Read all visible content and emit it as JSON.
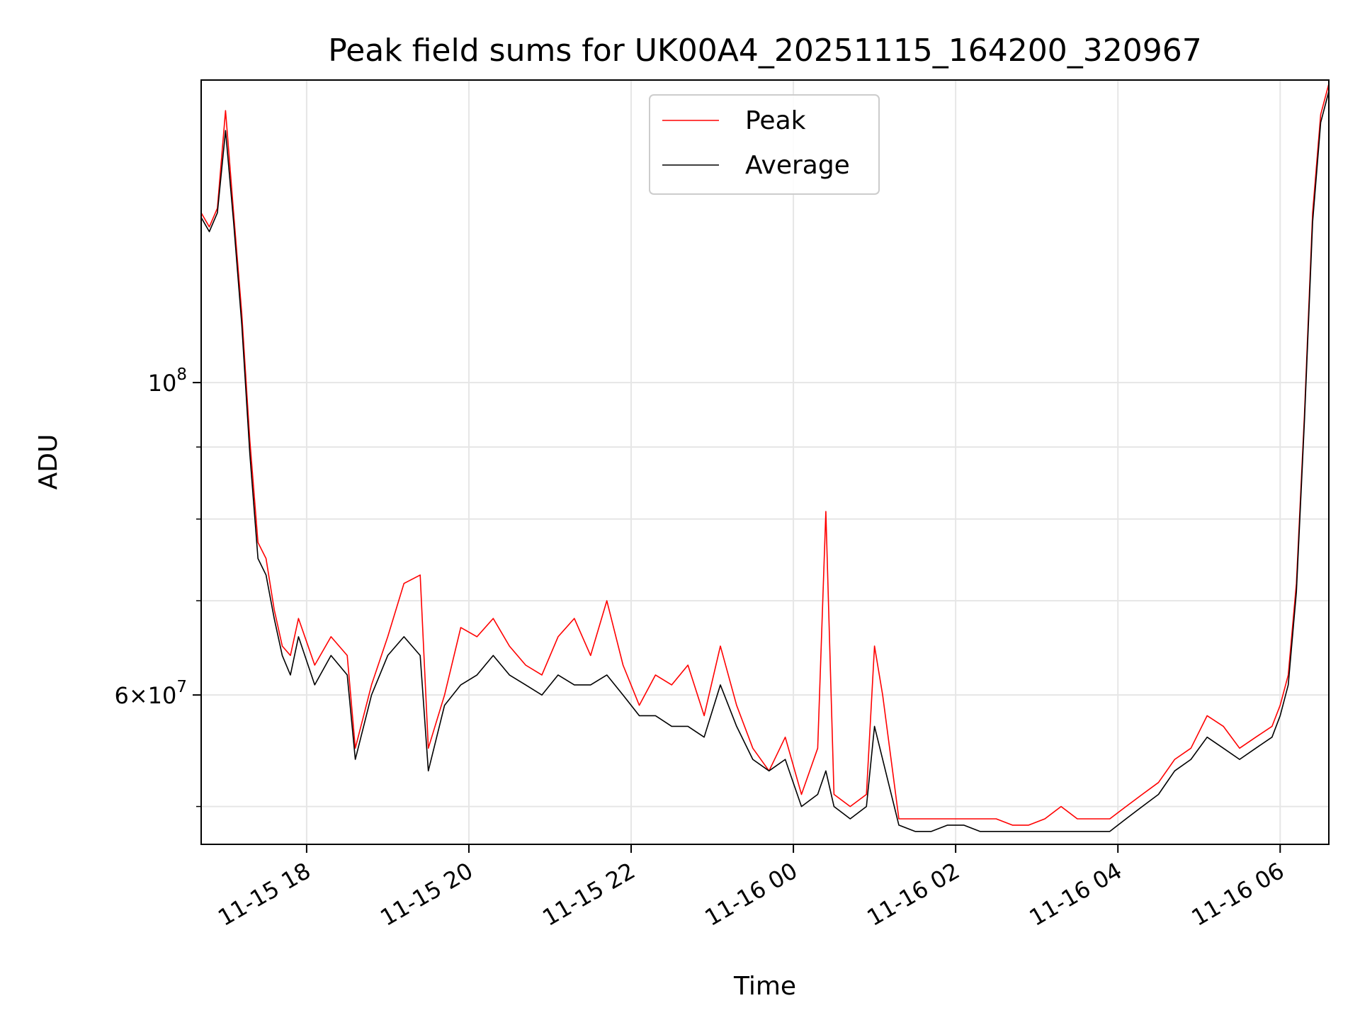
{
  "chart_data": {
    "type": "line",
    "title": "Peak field sums for UK00A4_20251115_164200_320967",
    "xlabel": "Time",
    "ylabel": "ADU",
    "yscale": "log",
    "grid": true,
    "legend_placement": "upper-center",
    "xlim": [
      "2025-11-15 16:42",
      "2025-11-16 06:36"
    ],
    "ylim": [
      47000000,
      164000000
    ],
    "x_ticks": [
      {
        "value": "2025-11-15 18:00",
        "label": "11-15 18"
      },
      {
        "value": "2025-11-15 20:00",
        "label": "11-15 20"
      },
      {
        "value": "2025-11-15 22:00",
        "label": "11-15 22"
      },
      {
        "value": "2025-11-16 00:00",
        "label": "11-16 00"
      },
      {
        "value": "2025-11-16 02:00",
        "label": "11-16 02"
      },
      {
        "value": "2025-11-16 04:00",
        "label": "11-16 04"
      },
      {
        "value": "2025-11-16 06:00",
        "label": "11-16 06"
      }
    ],
    "y_major_ticks": [
      {
        "value": 100000000,
        "base": "10",
        "exp": "8"
      },
      {
        "value": 60000000,
        "mant": "6",
        "base": "10",
        "exp": "7"
      }
    ],
    "y_minor_ticks": [
      50000000,
      70000000,
      80000000,
      90000000
    ],
    "x": [
      "2025-11-15 16:42",
      "2025-11-15 16:48",
      "2025-11-15 16:54",
      "2025-11-15 17:00",
      "2025-11-15 17:06",
      "2025-11-15 17:12",
      "2025-11-15 17:18",
      "2025-11-15 17:24",
      "2025-11-15 17:30",
      "2025-11-15 17:36",
      "2025-11-15 17:42",
      "2025-11-15 17:48",
      "2025-11-15 17:54",
      "2025-11-15 18:06",
      "2025-11-15 18:18",
      "2025-11-15 18:30",
      "2025-11-15 18:36",
      "2025-11-15 18:48",
      "2025-11-15 19:00",
      "2025-11-15 19:12",
      "2025-11-15 19:24",
      "2025-11-15 19:30",
      "2025-11-15 19:42",
      "2025-11-15 19:54",
      "2025-11-15 20:06",
      "2025-11-15 20:18",
      "2025-11-15 20:30",
      "2025-11-15 20:42",
      "2025-11-15 20:54",
      "2025-11-15 21:06",
      "2025-11-15 21:18",
      "2025-11-15 21:30",
      "2025-11-15 21:42",
      "2025-11-15 21:54",
      "2025-11-15 22:06",
      "2025-11-15 22:18",
      "2025-11-15 22:30",
      "2025-11-15 22:42",
      "2025-11-15 22:54",
      "2025-11-15 23:06",
      "2025-11-15 23:18",
      "2025-11-15 23:30",
      "2025-11-15 23:42",
      "2025-11-15 23:54",
      "2025-11-16 00:06",
      "2025-11-16 00:18",
      "2025-11-16 00:24",
      "2025-11-16 00:30",
      "2025-11-16 00:42",
      "2025-11-16 00:54",
      "2025-11-16 01:00",
      "2025-11-16 01:06",
      "2025-11-16 01:18",
      "2025-11-16 01:30",
      "2025-11-16 01:42",
      "2025-11-16 01:54",
      "2025-11-16 02:06",
      "2025-11-16 02:18",
      "2025-11-16 02:30",
      "2025-11-16 02:42",
      "2025-11-16 02:54",
      "2025-11-16 03:06",
      "2025-11-16 03:18",
      "2025-11-16 03:30",
      "2025-11-16 03:42",
      "2025-11-16 03:54",
      "2025-11-16 04:06",
      "2025-11-16 04:18",
      "2025-11-16 04:30",
      "2025-11-16 04:42",
      "2025-11-16 04:54",
      "2025-11-16 05:06",
      "2025-11-16 05:18",
      "2025-11-16 05:30",
      "2025-11-16 05:42",
      "2025-11-16 05:54",
      "2025-11-16 06:00",
      "2025-11-16 06:06",
      "2025-11-16 06:12",
      "2025-11-16 06:18",
      "2025-11-16 06:24",
      "2025-11-16 06:30",
      "2025-11-16 06:36"
    ],
    "series": [
      {
        "name": "Peak",
        "color": "#ff0000",
        "values": [
          132000000,
          129000000,
          133000000,
          156000000,
          132000000,
          112000000,
          91000000,
          77000000,
          75000000,
          69000000,
          65000000,
          64000000,
          68000000,
          63000000,
          66000000,
          64000000,
          55000000,
          61000000,
          66000000,
          72000000,
          73000000,
          55000000,
          60000000,
          67000000,
          66000000,
          68000000,
          65000000,
          63000000,
          62000000,
          66000000,
          68000000,
          64000000,
          70000000,
          63000000,
          59000000,
          62000000,
          61000000,
          63000000,
          58000000,
          65000000,
          59000000,
          55000000,
          53000000,
          56000000,
          51000000,
          55000000,
          81000000,
          51000000,
          50000000,
          51000000,
          65000000,
          60000000,
          49000000,
          49000000,
          49000000,
          49000000,
          49000000,
          49000000,
          49000000,
          48500000,
          48500000,
          49000000,
          50000000,
          49000000,
          49000000,
          49000000,
          50000000,
          51000000,
          52000000,
          54000000,
          55000000,
          58000000,
          57000000,
          55000000,
          56000000,
          57000000,
          59000000,
          62000000,
          72000000,
          95000000,
          132000000,
          155000000,
          163000000
        ]
      },
      {
        "name": "Average",
        "color": "#000000",
        "values": [
          131000000,
          128000000,
          132000000,
          151000000,
          130000000,
          110000000,
          89000000,
          75000000,
          73000000,
          68000000,
          64000000,
          62000000,
          66000000,
          61000000,
          64000000,
          62000000,
          54000000,
          60000000,
          64000000,
          66000000,
          64000000,
          53000000,
          59000000,
          61000000,
          62000000,
          64000000,
          62000000,
          61000000,
          60000000,
          62000000,
          61000000,
          61000000,
          62000000,
          60000000,
          58000000,
          58000000,
          57000000,
          57000000,
          56000000,
          61000000,
          57000000,
          54000000,
          53000000,
          54000000,
          50000000,
          51000000,
          53000000,
          50000000,
          49000000,
          50000000,
          57000000,
          54000000,
          48500000,
          48000000,
          48000000,
          48500000,
          48500000,
          48000000,
          48000000,
          48000000,
          48000000,
          48000000,
          48000000,
          48000000,
          48000000,
          48000000,
          49000000,
          50000000,
          51000000,
          53000000,
          54000000,
          56000000,
          55000000,
          54000000,
          55000000,
          56000000,
          58000000,
          61000000,
          71000000,
          94000000,
          130000000,
          153000000,
          161000000
        ]
      }
    ]
  }
}
